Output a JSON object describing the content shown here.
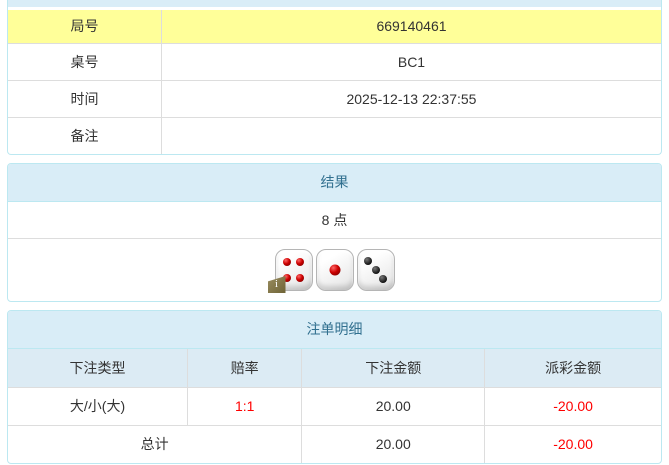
{
  "colors": {
    "panel_border": "#bce8f1",
    "heading_bg": "#d9edf7",
    "heading_text": "#31708f",
    "highlight_row_bg": "#ffff99",
    "cell_border": "#dddddd",
    "header_row_bg": "#dcebf4",
    "text": "#333333",
    "negative_text": "#ff0000"
  },
  "round_info": {
    "rows": [
      {
        "label": "局号",
        "value": "669140461",
        "highlight": true
      },
      {
        "label": "桌号",
        "value": "BC1",
        "highlight": false
      },
      {
        "label": "时间",
        "value": "2025-12-13 22:37:55",
        "highlight": false
      },
      {
        "label": "备注",
        "value": "",
        "highlight": false
      }
    ]
  },
  "result_panel": {
    "title": "结果",
    "points": "8 点",
    "dice": [
      {
        "value": 4,
        "pip_color": "red"
      },
      {
        "value": 1,
        "pip_color": "red"
      },
      {
        "value": 3,
        "pip_color": "black"
      }
    ],
    "info_badge_glyph": "i"
  },
  "bet_panel": {
    "title": "注单明细",
    "columns": [
      "下注类型",
      "赔率",
      "下注金额",
      "派彩金额"
    ],
    "rows": [
      {
        "type": "大/小(大)",
        "odds": "1:1",
        "amount": "20.00",
        "payout": "-20.00",
        "payout_negative": true
      }
    ],
    "total": {
      "label": "总计",
      "amount": "20.00",
      "payout": "-20.00",
      "payout_negative": true
    }
  }
}
